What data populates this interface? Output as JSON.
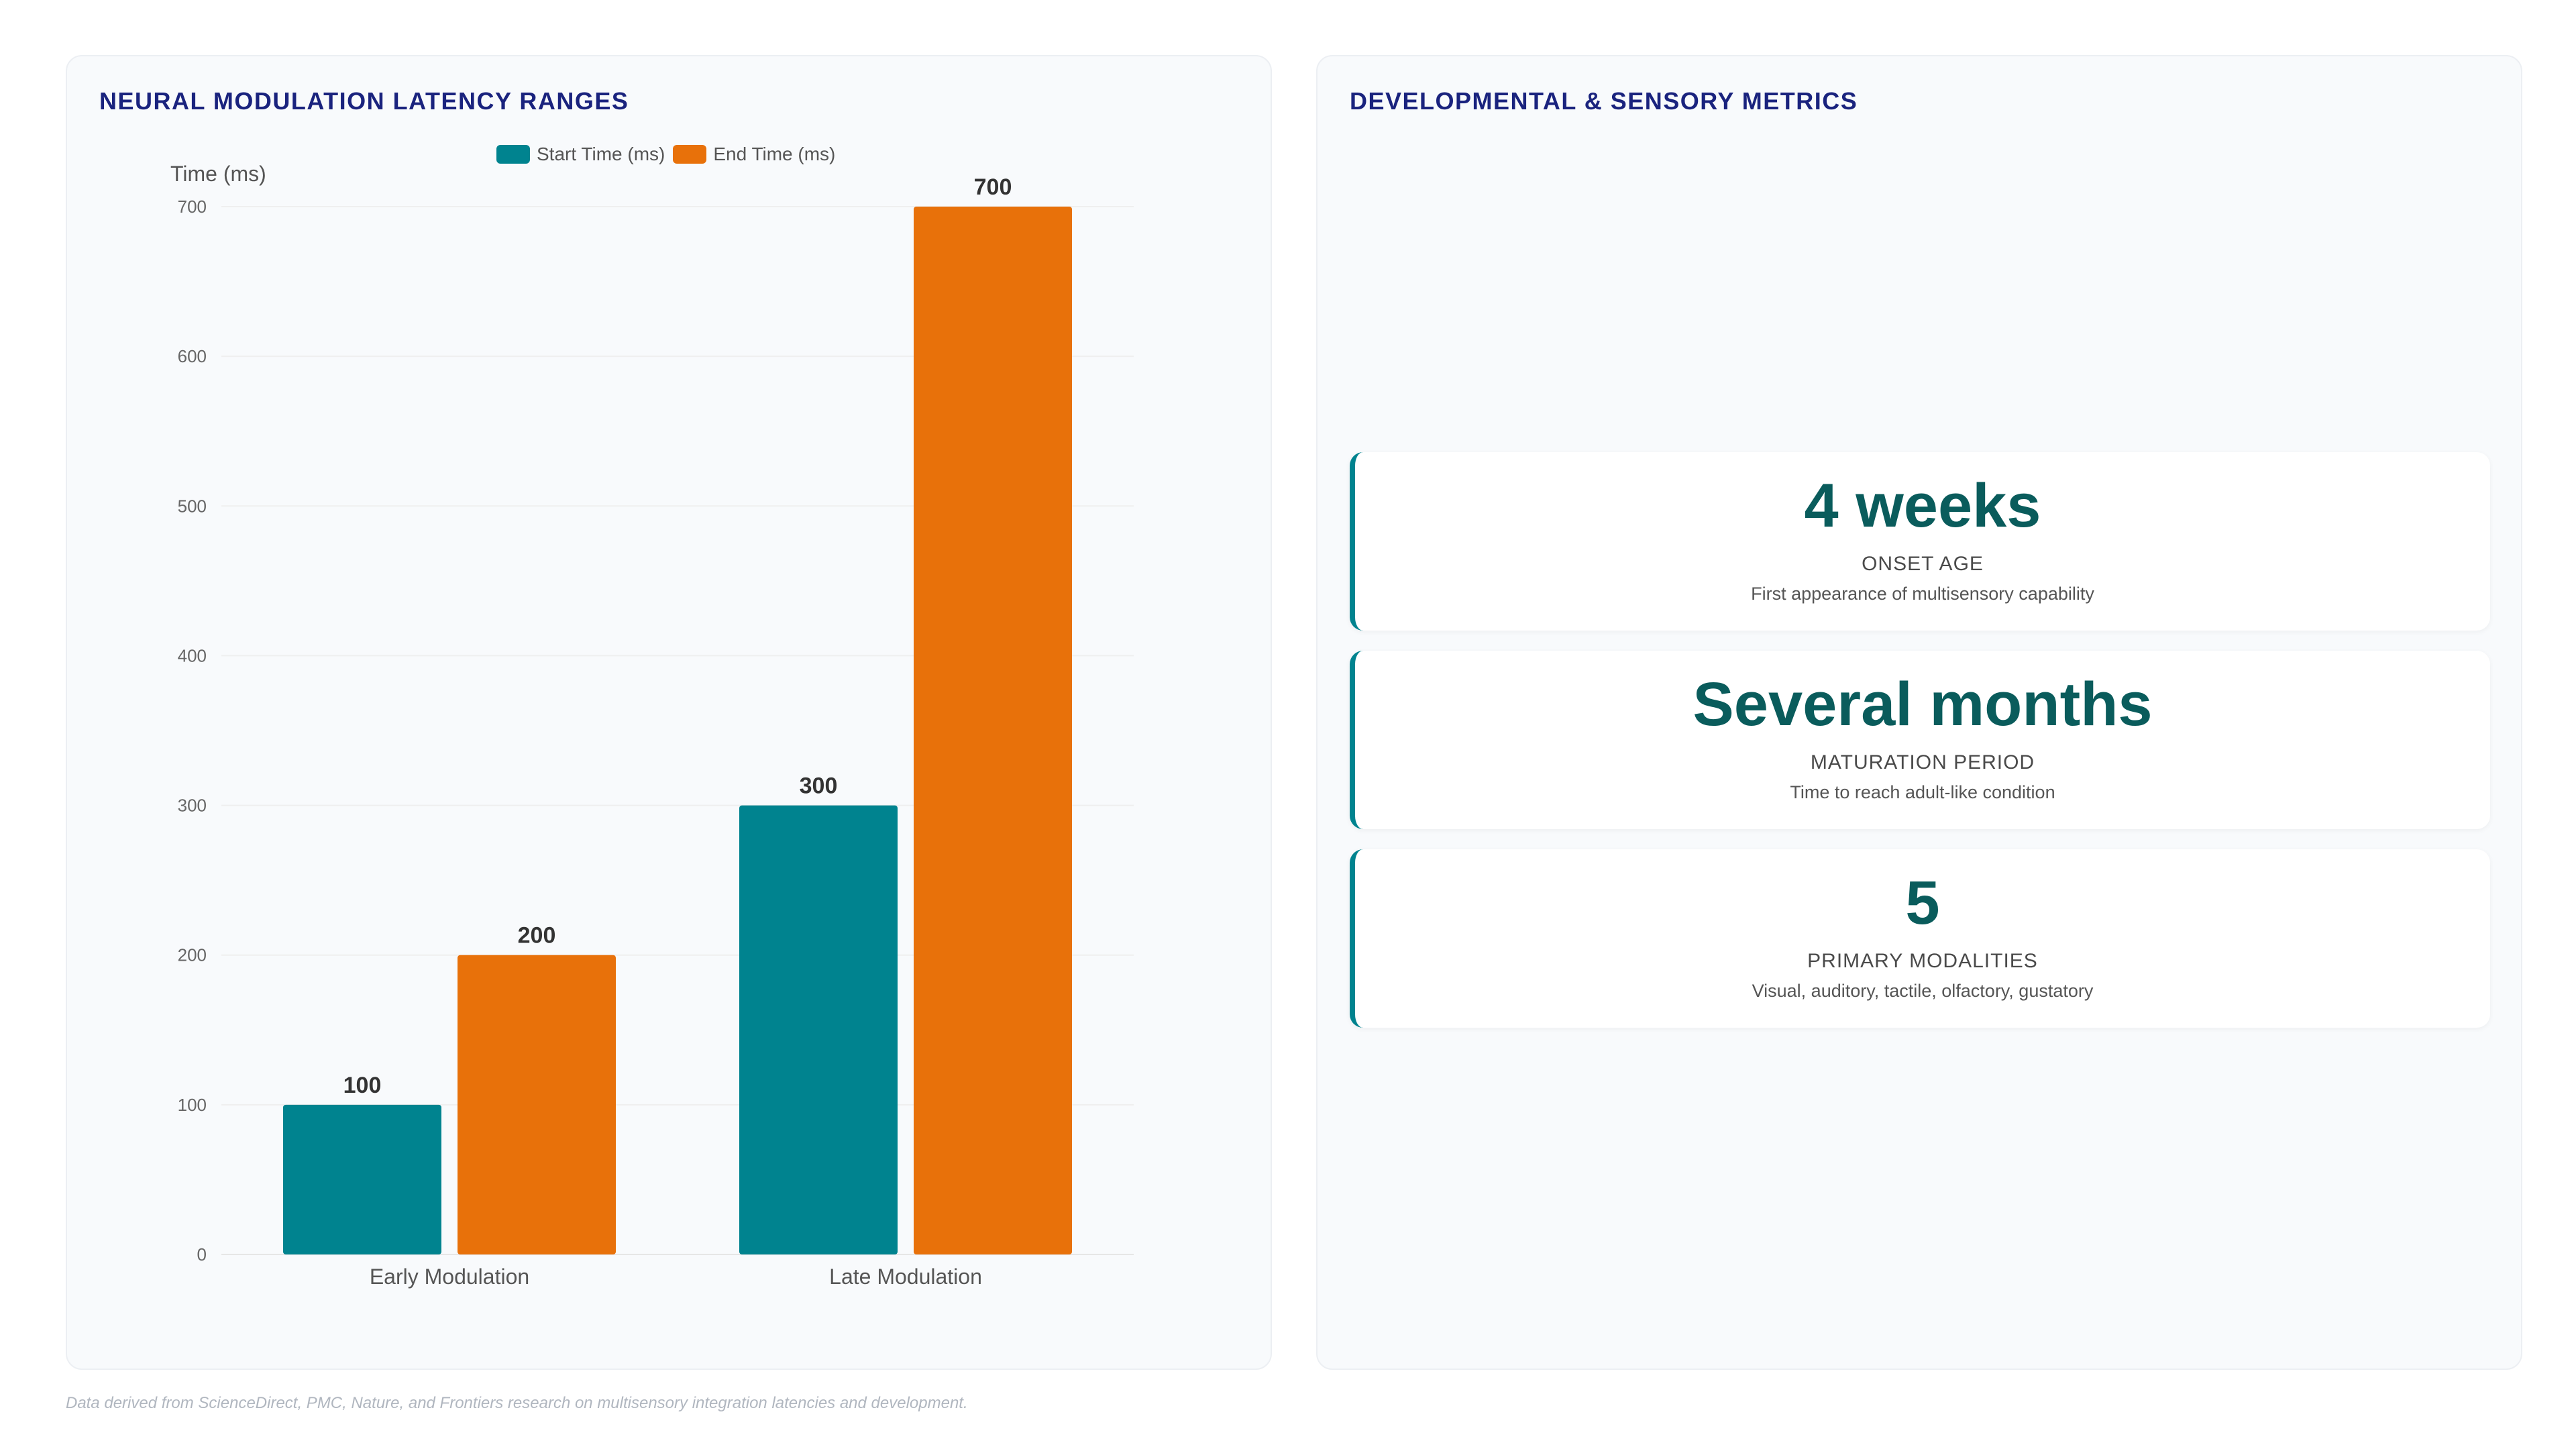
{
  "left_panel": {
    "title": "NEURAL MODULATION LATENCY RANGES"
  },
  "right_panel": {
    "title": "DEVELOPMENTAL & SENSORY METRICS"
  },
  "chart_data": {
    "type": "bar",
    "categories": [
      "Early Modulation",
      "Late Modulation"
    ],
    "series": [
      {
        "name": "Start Time (ms)",
        "values": [
          100,
          300
        ],
        "color": "#00838f"
      },
      {
        "name": "End Time (ms)",
        "values": [
          200,
          700
        ],
        "color": "#e8710a"
      }
    ],
    "ylabel": "Time (ms)",
    "ylim": [
      0,
      700
    ],
    "yticks": [
      0,
      100,
      200,
      300,
      400,
      500,
      600,
      700
    ],
    "legend": "top-center",
    "grid": true
  },
  "metrics": [
    {
      "value": "4 weeks",
      "label": "ONSET AGE",
      "desc": "First appearance of multisensory capability"
    },
    {
      "value": "Several months",
      "label": "MATURATION PERIOD",
      "desc": "Time to reach adult-like condition"
    },
    {
      "value": "5",
      "label": "PRIMARY MODALITIES",
      "desc": "Visual, auditory, tactile, olfactory, gustatory"
    }
  ],
  "footer": "Data derived from ScienceDirect, PMC, Nature, and Frontiers research on multisensory integration latencies and development."
}
